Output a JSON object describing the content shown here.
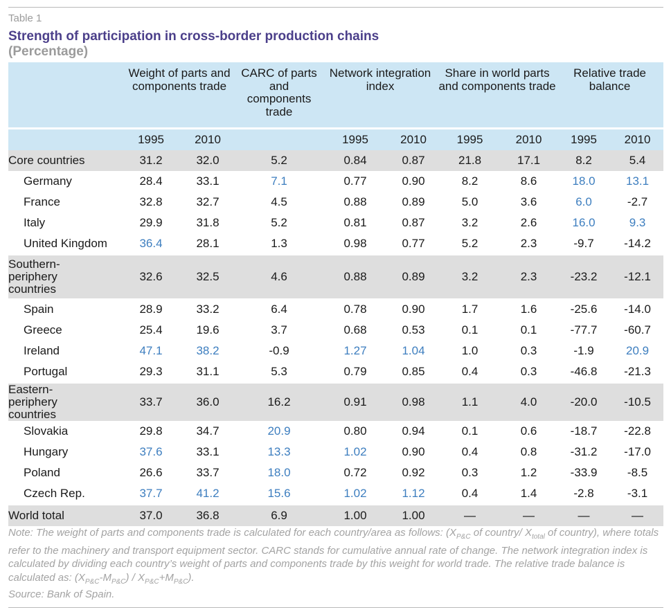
{
  "table_label": "Table 1",
  "title": "Strength of participation in cross-border production chains",
  "subtitle": "(Percentage)",
  "headers": {
    "weight": "Weight of parts and components trade",
    "carc": "CARC of parts and components trade",
    "network": "Network integration index",
    "share": "Share in world parts and components trade",
    "balance": "Relative trade balance"
  },
  "years": {
    "y1": "1995",
    "y2": "2010"
  },
  "rows": [
    {
      "name": "Core countries",
      "group": true,
      "v": [
        "31.2",
        "32.0",
        "5.2",
        "0.84",
        "0.87",
        "21.8",
        "17.1",
        "8.2",
        "5.4"
      ],
      "hl": []
    },
    {
      "name": "Germany",
      "group": false,
      "v": [
        "28.4",
        "33.1",
        "7.1",
        "0.77",
        "0.90",
        "8.2",
        "8.6",
        "18.0",
        "13.1"
      ],
      "hl": [
        2,
        7,
        8
      ]
    },
    {
      "name": "France",
      "group": false,
      "v": [
        "32.8",
        "32.7",
        "4.5",
        "0.88",
        "0.89",
        "5.0",
        "3.6",
        "6.0",
        "-2.7"
      ],
      "hl": [
        7
      ]
    },
    {
      "name": "Italy",
      "group": false,
      "v": [
        "29.9",
        "31.8",
        "5.2",
        "0.81",
        "0.87",
        "3.2",
        "2.6",
        "16.0",
        "9.3"
      ],
      "hl": [
        7,
        8
      ]
    },
    {
      "name": "United Kingdom",
      "group": false,
      "v": [
        "36.4",
        "28.1",
        "1.3",
        "0.98",
        "0.77",
        "5.2",
        "2.3",
        "-9.7",
        "-14.2"
      ],
      "hl": [
        0
      ]
    },
    {
      "name": "Southern-periphery countries",
      "group": true,
      "v": [
        "32.6",
        "32.5",
        "4.6",
        "0.88",
        "0.89",
        "3.2",
        "2.3",
        "-23.2",
        "-12.1"
      ],
      "hl": []
    },
    {
      "name": "Spain",
      "group": false,
      "v": [
        "28.9",
        "33.2",
        "6.4",
        "0.78",
        "0.90",
        "1.7",
        "1.6",
        "-25.6",
        "-14.0"
      ],
      "hl": []
    },
    {
      "name": "Greece",
      "group": false,
      "v": [
        "25.4",
        "19.6",
        "3.7",
        "0.68",
        "0.53",
        "0.1",
        "0.1",
        "-77.7",
        "-60.7"
      ],
      "hl": []
    },
    {
      "name": "Ireland",
      "group": false,
      "v": [
        "47.1",
        "38.2",
        "-0.9",
        "1.27",
        "1.04",
        "1.0",
        "0.3",
        "-1.9",
        "20.9"
      ],
      "hl": [
        0,
        1,
        3,
        4,
        8
      ]
    },
    {
      "name": "Portugal",
      "group": false,
      "v": [
        "29.3",
        "31.1",
        "5.3",
        "0.79",
        "0.85",
        "0.4",
        "0.3",
        "-46.8",
        "-21.3"
      ],
      "hl": []
    },
    {
      "name": "Eastern-periphery countries",
      "group": true,
      "v": [
        "33.7",
        "36.0",
        "16.2",
        "0.91",
        "0.98",
        "1.1",
        "4.0",
        "-20.0",
        "-10.5"
      ],
      "hl": []
    },
    {
      "name": "Slovakia",
      "group": false,
      "v": [
        "29.8",
        "34.7",
        "20.9",
        "0.80",
        "0.94",
        "0.1",
        "0.6",
        "-18.7",
        "-22.8"
      ],
      "hl": [
        2
      ]
    },
    {
      "name": "Hungary",
      "group": false,
      "v": [
        "37.6",
        "33.1",
        "13.3",
        "1.02",
        "0.90",
        "0.4",
        "0.8",
        "-31.2",
        "-17.0"
      ],
      "hl": [
        0,
        2,
        3
      ]
    },
    {
      "name": "Poland",
      "group": false,
      "v": [
        "26.6",
        "33.7",
        "18.0",
        "0.72",
        "0.92",
        "0.3",
        "1.2",
        "-33.9",
        "-8.5"
      ],
      "hl": [
        2
      ]
    },
    {
      "name": "Czech Rep.",
      "group": false,
      "v": [
        "37.7",
        "41.2",
        "15.6",
        "1.02",
        "1.12",
        "0.4",
        "1.4",
        "-2.8",
        "-3.1"
      ],
      "hl": [
        0,
        1,
        2,
        3,
        4
      ]
    },
    {
      "name": "World total",
      "group": true,
      "v": [
        "37.0",
        "36.8",
        "6.9",
        "1.00",
        "1.00",
        "—",
        "—",
        "—",
        "—"
      ],
      "hl": []
    }
  ],
  "note": {
    "p1": "Note: The weight of parts and components trade is calculated for each country/area as follows: (X",
    "s1": "P&C",
    "p2": " of country/ X",
    "s2": "total",
    "p3": " of country), where totals refer to the machinery and transport equipment sector. CARC stands for cumulative annual rate of change. The network integration index is calculated by dividing each country’s weight of parts and components trade by this weight for world trade. The relative trade balance is calculated as: (X",
    "s3": "P&C",
    "p4": "-M",
    "s4": "P&C",
    "p5": ") / X",
    "s5": "P&C",
    "p6": "+M",
    "s6": "P&C",
    "p7": ")."
  },
  "source": "Source: Bank of Spain."
}
